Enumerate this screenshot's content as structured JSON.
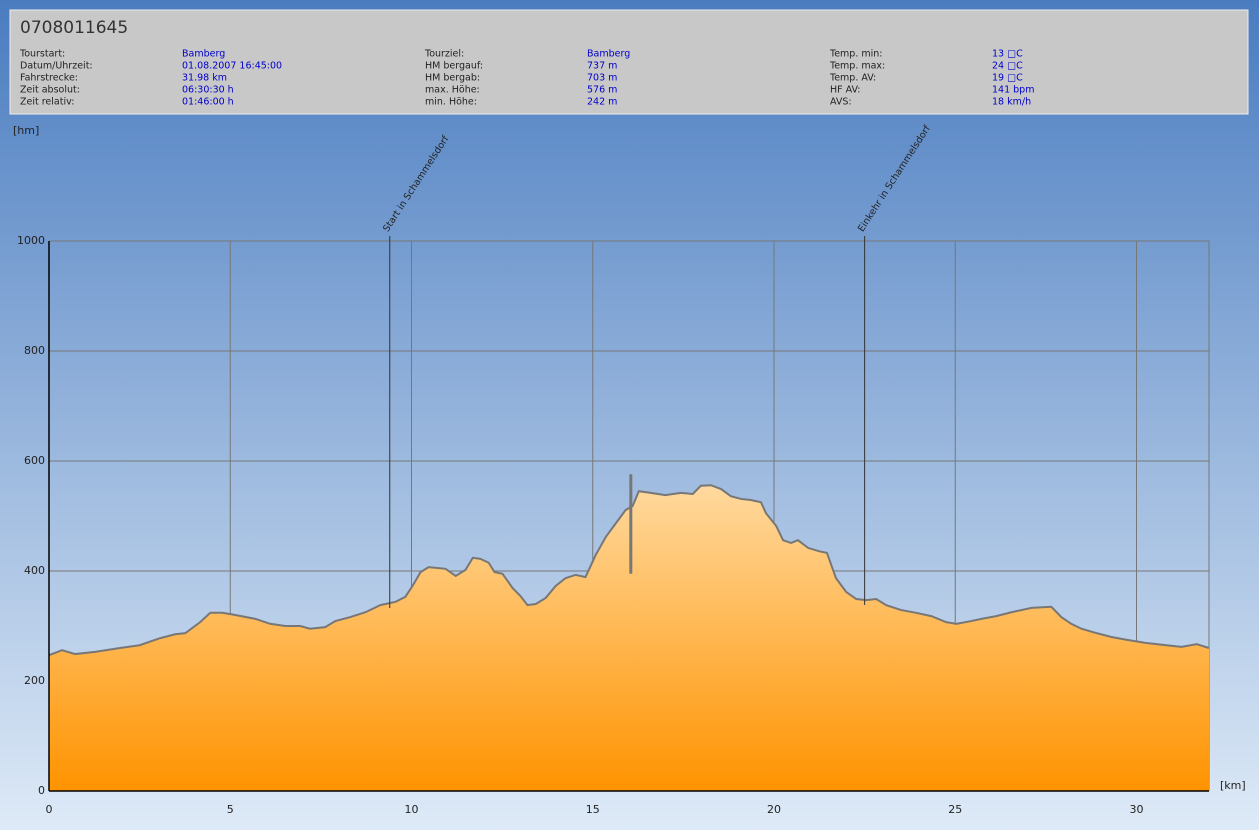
{
  "header": {
    "title": "0708011645",
    "columns": [
      [
        {
          "label": "Tourstart:",
          "value": "Bamberg"
        },
        {
          "label": "Datum/Uhrzeit:",
          "value": "01.08.2007 16:45:00"
        },
        {
          "label": "Fahrstrecke:",
          "value": "31.98 km"
        },
        {
          "label": "Zeit absolut:",
          "value": "06:30:30 h"
        },
        {
          "label": "Zeit relativ:",
          "value": "01:46:00 h"
        }
      ],
      [
        {
          "label": "Tourziel:",
          "value": "Bamberg"
        },
        {
          "label": "HM bergauf:",
          "value": "737 m"
        },
        {
          "label": "HM bergab:",
          "value": "703 m"
        },
        {
          "label": "max. Höhe:",
          "value": "576 m"
        },
        {
          "label": "min. Höhe:",
          "value": "242 m"
        }
      ],
      [
        {
          "label": "Temp. min:",
          "value": "13 □C"
        },
        {
          "label": "Temp. max:",
          "value": "24 □C"
        },
        {
          "label": "Temp. AV:",
          "value": "19 □C"
        },
        {
          "label": "HF AV:",
          "value": "141 bpm"
        },
        {
          "label": "AVS:",
          "value": "18 km/h"
        }
      ]
    ]
  },
  "chart_data": {
    "type": "area",
    "y_label": "[hm]",
    "x_label": "[km]",
    "xlim": [
      0,
      32
    ],
    "xticks": [
      0,
      5,
      10,
      15,
      20,
      25,
      30
    ],
    "ylim": [
      0,
      1000
    ],
    "yticks": [
      0,
      200,
      400,
      600,
      800,
      1000
    ],
    "grid": true,
    "series": [
      {
        "color": "#ff9500",
        "line_color": "#777777",
        "x": [
          0,
          0.36,
          0.72,
          1.27,
          1.96,
          2.5,
          3.07,
          3.48,
          3.76,
          4.17,
          4.45,
          4.78,
          5.14,
          5.69,
          6.1,
          6.52,
          6.93,
          7.2,
          7.62,
          7.9,
          8.3,
          8.73,
          9.14,
          9.56,
          9.83,
          10.03,
          10.25,
          10.47,
          10.94,
          11.22,
          11.49,
          11.69,
          11.9,
          12.13,
          12.29,
          12.51,
          12.79,
          13.0,
          13.2,
          13.43,
          13.7,
          13.98,
          14.25,
          14.53,
          14.8,
          15.08,
          15.36,
          15.64,
          15.91,
          16.1,
          16.27,
          16.6,
          17.0,
          17.43,
          17.76,
          17.98,
          18.26,
          18.54,
          18.81,
          19.09,
          19.36,
          19.64,
          19.78,
          20.06,
          20.25,
          20.47,
          20.66,
          20.94,
          21.24,
          21.46,
          21.71,
          21.99,
          22.27,
          22.54,
          22.82,
          23.09,
          23.51,
          23.92,
          24.34,
          24.75,
          25.03,
          25.44,
          25.72,
          26.13,
          26.55,
          27.1,
          27.65,
          27.93,
          28.2,
          28.48,
          28.9,
          29.31,
          29.72,
          30.28,
          30.83,
          31.24,
          31.66,
          32
        ],
        "values": [
          247,
          256,
          249,
          253,
          260,
          265,
          278,
          285,
          287,
          307,
          324,
          324,
          320,
          313,
          304,
          300,
          300,
          295,
          298,
          309,
          316,
          325,
          338,
          344,
          353,
          373,
          398,
          407,
          404,
          391,
          402,
          424,
          422,
          415,
          398,
          395,
          369,
          355,
          338,
          340,
          351,
          373,
          387,
          393,
          389,
          429,
          462,
          487,
          511,
          518,
          545,
          542,
          538,
          542,
          540,
          555,
          556,
          549,
          536,
          531,
          529,
          525,
          505,
          482,
          456,
          451,
          456,
          442,
          436,
          433,
          387,
          362,
          349,
          347,
          349,
          338,
          329,
          324,
          318,
          307,
          304,
          309,
          313,
          318,
          325,
          333,
          335,
          316,
          304,
          295,
          287,
          280,
          275,
          269,
          265,
          262,
          267,
          260
        ]
      }
    ],
    "max_marker": {
      "x": 16.05,
      "y": [
        395,
        576
      ]
    },
    "annotations": [
      {
        "x": 9.4,
        "text": "Start in Schammelsdorf"
      },
      {
        "x": 22.5,
        "text": "Einkehr in Schammelsdorf"
      }
    ]
  }
}
